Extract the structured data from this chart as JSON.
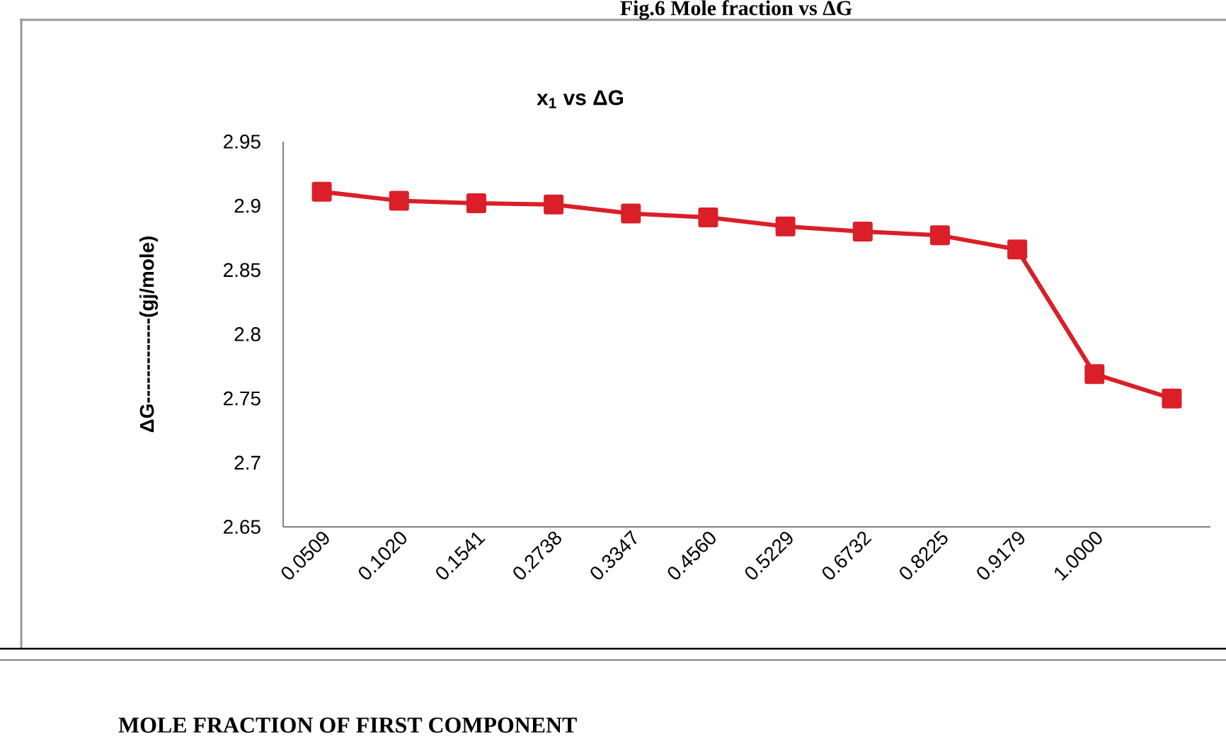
{
  "chart_data": {
    "type": "line",
    "title": "Fig.6  Mole fraction vs ΔG",
    "subtitle": "x$_{1}$ vs ΔG",
    "annotations": [
      "MOLE FRACTION OF FIRST COMPONENT"
    ],
    "ylabel": "ΔG-------------(gj/mole)",
    "categories": [
      "0.0509",
      "0.1020",
      "0.1541",
      "0.2738",
      "0.3347",
      "0.4560",
      "0.5229",
      "0.6732",
      "0.8225",
      "0.9179",
      "1.0000",
      null
    ],
    "series": [
      {
        "color": "#da1f28",
        "values": [
          2.911,
          2.904,
          2.902,
          2.901,
          2.894,
          2.891,
          2.884,
          2.88,
          2.877,
          2.866,
          2.769,
          2.75
        ]
      }
    ],
    "ylim": [
      2.65,
      2.95
    ],
    "yticks": [
      2.65,
      2.7,
      2.75,
      2.8,
      2.85,
      2.9,
      2.95
    ],
    "grid": false,
    "legend": false,
    "marker": "square",
    "line_style": "solid"
  }
}
